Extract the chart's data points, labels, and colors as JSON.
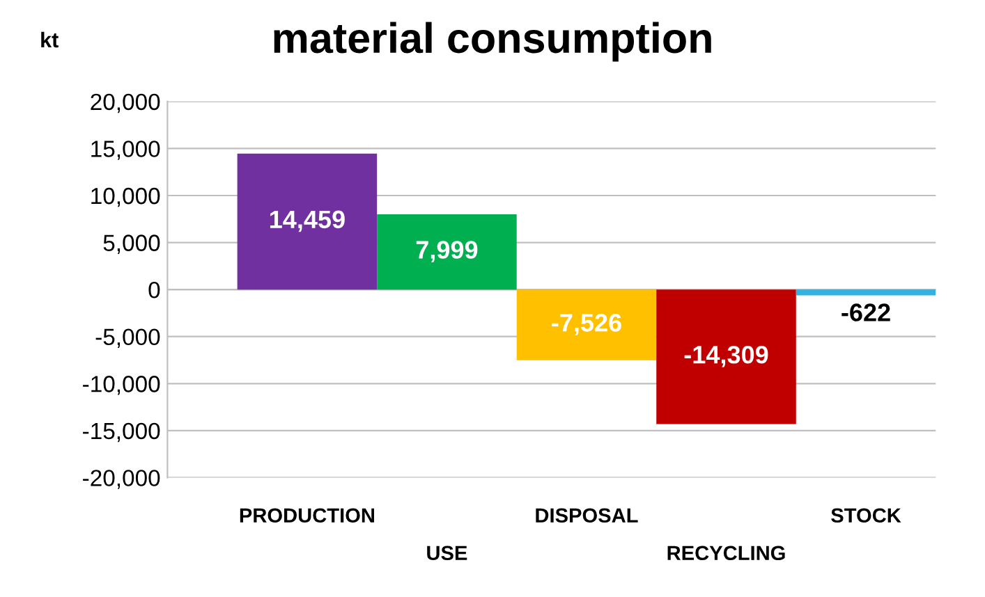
{
  "chart_data": {
    "type": "bar",
    "title": "material consumption",
    "ylabel": "kt",
    "categories": [
      "PRODUCTION",
      "USE",
      "DISPOSAL",
      "RECYCLING",
      "STOCK"
    ],
    "values": [
      14459,
      7999,
      -7526,
      -14309,
      -622
    ],
    "colors": [
      "#7030a0",
      "#00b050",
      "#ffc000",
      "#c00000",
      "#31b2e0"
    ],
    "value_labels": [
      "14,459",
      "7,999",
      "-7,526",
      "-14,309",
      "-622"
    ],
    "ylim": [
      -20000,
      20000
    ],
    "yticks": [
      {
        "value": -20000,
        "label": "-20,000"
      },
      {
        "value": -15000,
        "label": "-15,000"
      },
      {
        "value": -10000,
        "label": "-10,000"
      },
      {
        "value": -5000,
        "label": "-5,000"
      },
      0,
      {
        "value": 5000,
        "label": "5,000"
      },
      {
        "value": 10000,
        "label": "10,000"
      },
      {
        "value": 15000,
        "label": "15,000"
      },
      {
        "value": 20000,
        "label": "20,000"
      }
    ],
    "grid": "y",
    "legend": false
  }
}
